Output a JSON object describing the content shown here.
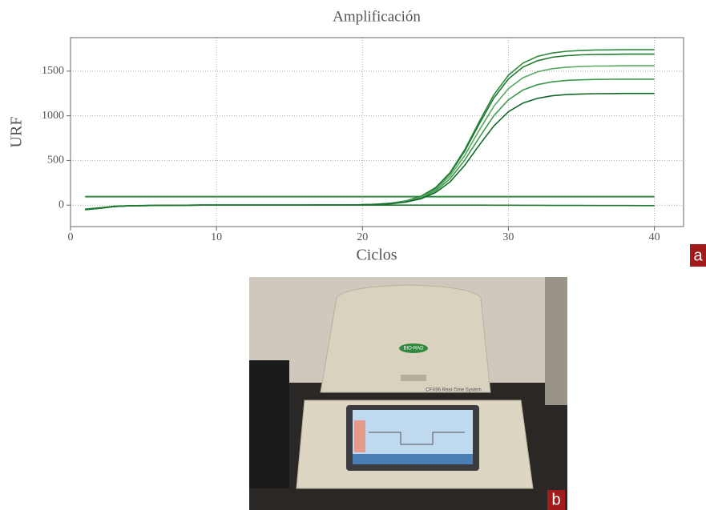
{
  "chart_data": {
    "type": "line",
    "title": "Amplificación",
    "x_label": "Ciclos",
    "y_label": "URF",
    "x": [
      1,
      2,
      3,
      4,
      5,
      6,
      7,
      8,
      9,
      10,
      11,
      12,
      13,
      14,
      15,
      16,
      17,
      18,
      19,
      20,
      21,
      22,
      23,
      24,
      25,
      26,
      27,
      28,
      29,
      30,
      31,
      32,
      33,
      34,
      35,
      36,
      37,
      38,
      39,
      40
    ],
    "series": [
      {
        "color": "#2f8a3f",
        "values": [
          -50,
          -35,
          -15,
          -8,
          -5,
          -3,
          -2,
          -1,
          0,
          0,
          0,
          0,
          0,
          0,
          0,
          0,
          1,
          1,
          2,
          5,
          11,
          23,
          49,
          99,
          195,
          364,
          619,
          934,
          1234,
          1455,
          1590,
          1665,
          1703,
          1723,
          1731,
          1737,
          1738,
          1740,
          1740,
          1740
        ]
      },
      {
        "color": "#1f7a30",
        "values": [
          -50,
          -35,
          -15,
          -8,
          -5,
          -3,
          -2,
          -1,
          0,
          0,
          0,
          0,
          0,
          0,
          0,
          0,
          1,
          1,
          2,
          5,
          10,
          22,
          47,
          96,
          189,
          353,
          602,
          908,
          1198,
          1413,
          1545,
          1617,
          1655,
          1673,
          1682,
          1687,
          1688,
          1690,
          1690,
          1690
        ]
      },
      {
        "color": "#5aa865",
        "values": [
          -50,
          -35,
          -15,
          -8,
          -5,
          -3,
          -2,
          -1,
          0,
          0,
          0,
          0,
          0,
          0,
          0,
          0,
          1,
          1,
          2,
          5,
          9,
          20,
          44,
          89,
          175,
          326,
          555,
          838,
          1106,
          1304,
          1426,
          1493,
          1527,
          1544,
          1552,
          1557,
          1558,
          1560,
          1560,
          1560
        ]
      },
      {
        "color": "#3c9a4c",
        "values": [
          -50,
          -35,
          -15,
          -8,
          -5,
          -3,
          -2,
          -1,
          0,
          0,
          0,
          0,
          0,
          0,
          0,
          0,
          1,
          1,
          2,
          4,
          8,
          18,
          39,
          80,
          158,
          295,
          502,
          757,
          1000,
          1179,
          1289,
          1349,
          1380,
          1396,
          1403,
          1407,
          1409,
          1410,
          1410,
          1410
        ]
      },
      {
        "color": "#11692a",
        "values": [
          -50,
          -35,
          -15,
          -8,
          -5,
          -3,
          -2,
          -1,
          0,
          0,
          0,
          0,
          0,
          0,
          0,
          0,
          1,
          1,
          2,
          4,
          8,
          16,
          35,
          71,
          140,
          261,
          445,
          671,
          886,
          1045,
          1143,
          1196,
          1224,
          1238,
          1244,
          1248,
          1249,
          1250,
          1250,
          1250
        ]
      },
      {
        "color": "#1f7a30",
        "values": [
          -45,
          -30,
          -12,
          -6,
          -4,
          -3,
          -2,
          -1,
          0,
          0,
          0,
          0,
          0,
          0,
          0,
          0,
          0,
          0,
          0,
          0,
          0,
          0,
          0,
          0,
          0,
          0,
          0,
          0,
          -1,
          -1,
          -2,
          -2,
          -3,
          -3,
          -3,
          -4,
          -4,
          -4,
          -5,
          -5
        ]
      }
    ],
    "threshold": {
      "value": 95,
      "color": "#2f8a3f"
    },
    "xlim": [
      0,
      42
    ],
    "ylim": [
      -240,
      1875
    ],
    "xticks": [
      0,
      10,
      20,
      30,
      40
    ],
    "yticks": [
      0,
      500,
      1000,
      1500
    ],
    "grid": true
  },
  "panel_labels": [
    "a",
    "b"
  ],
  "photo": {
    "brand": "BIO-RAD",
    "model": "CFX96 Real-Time System"
  }
}
